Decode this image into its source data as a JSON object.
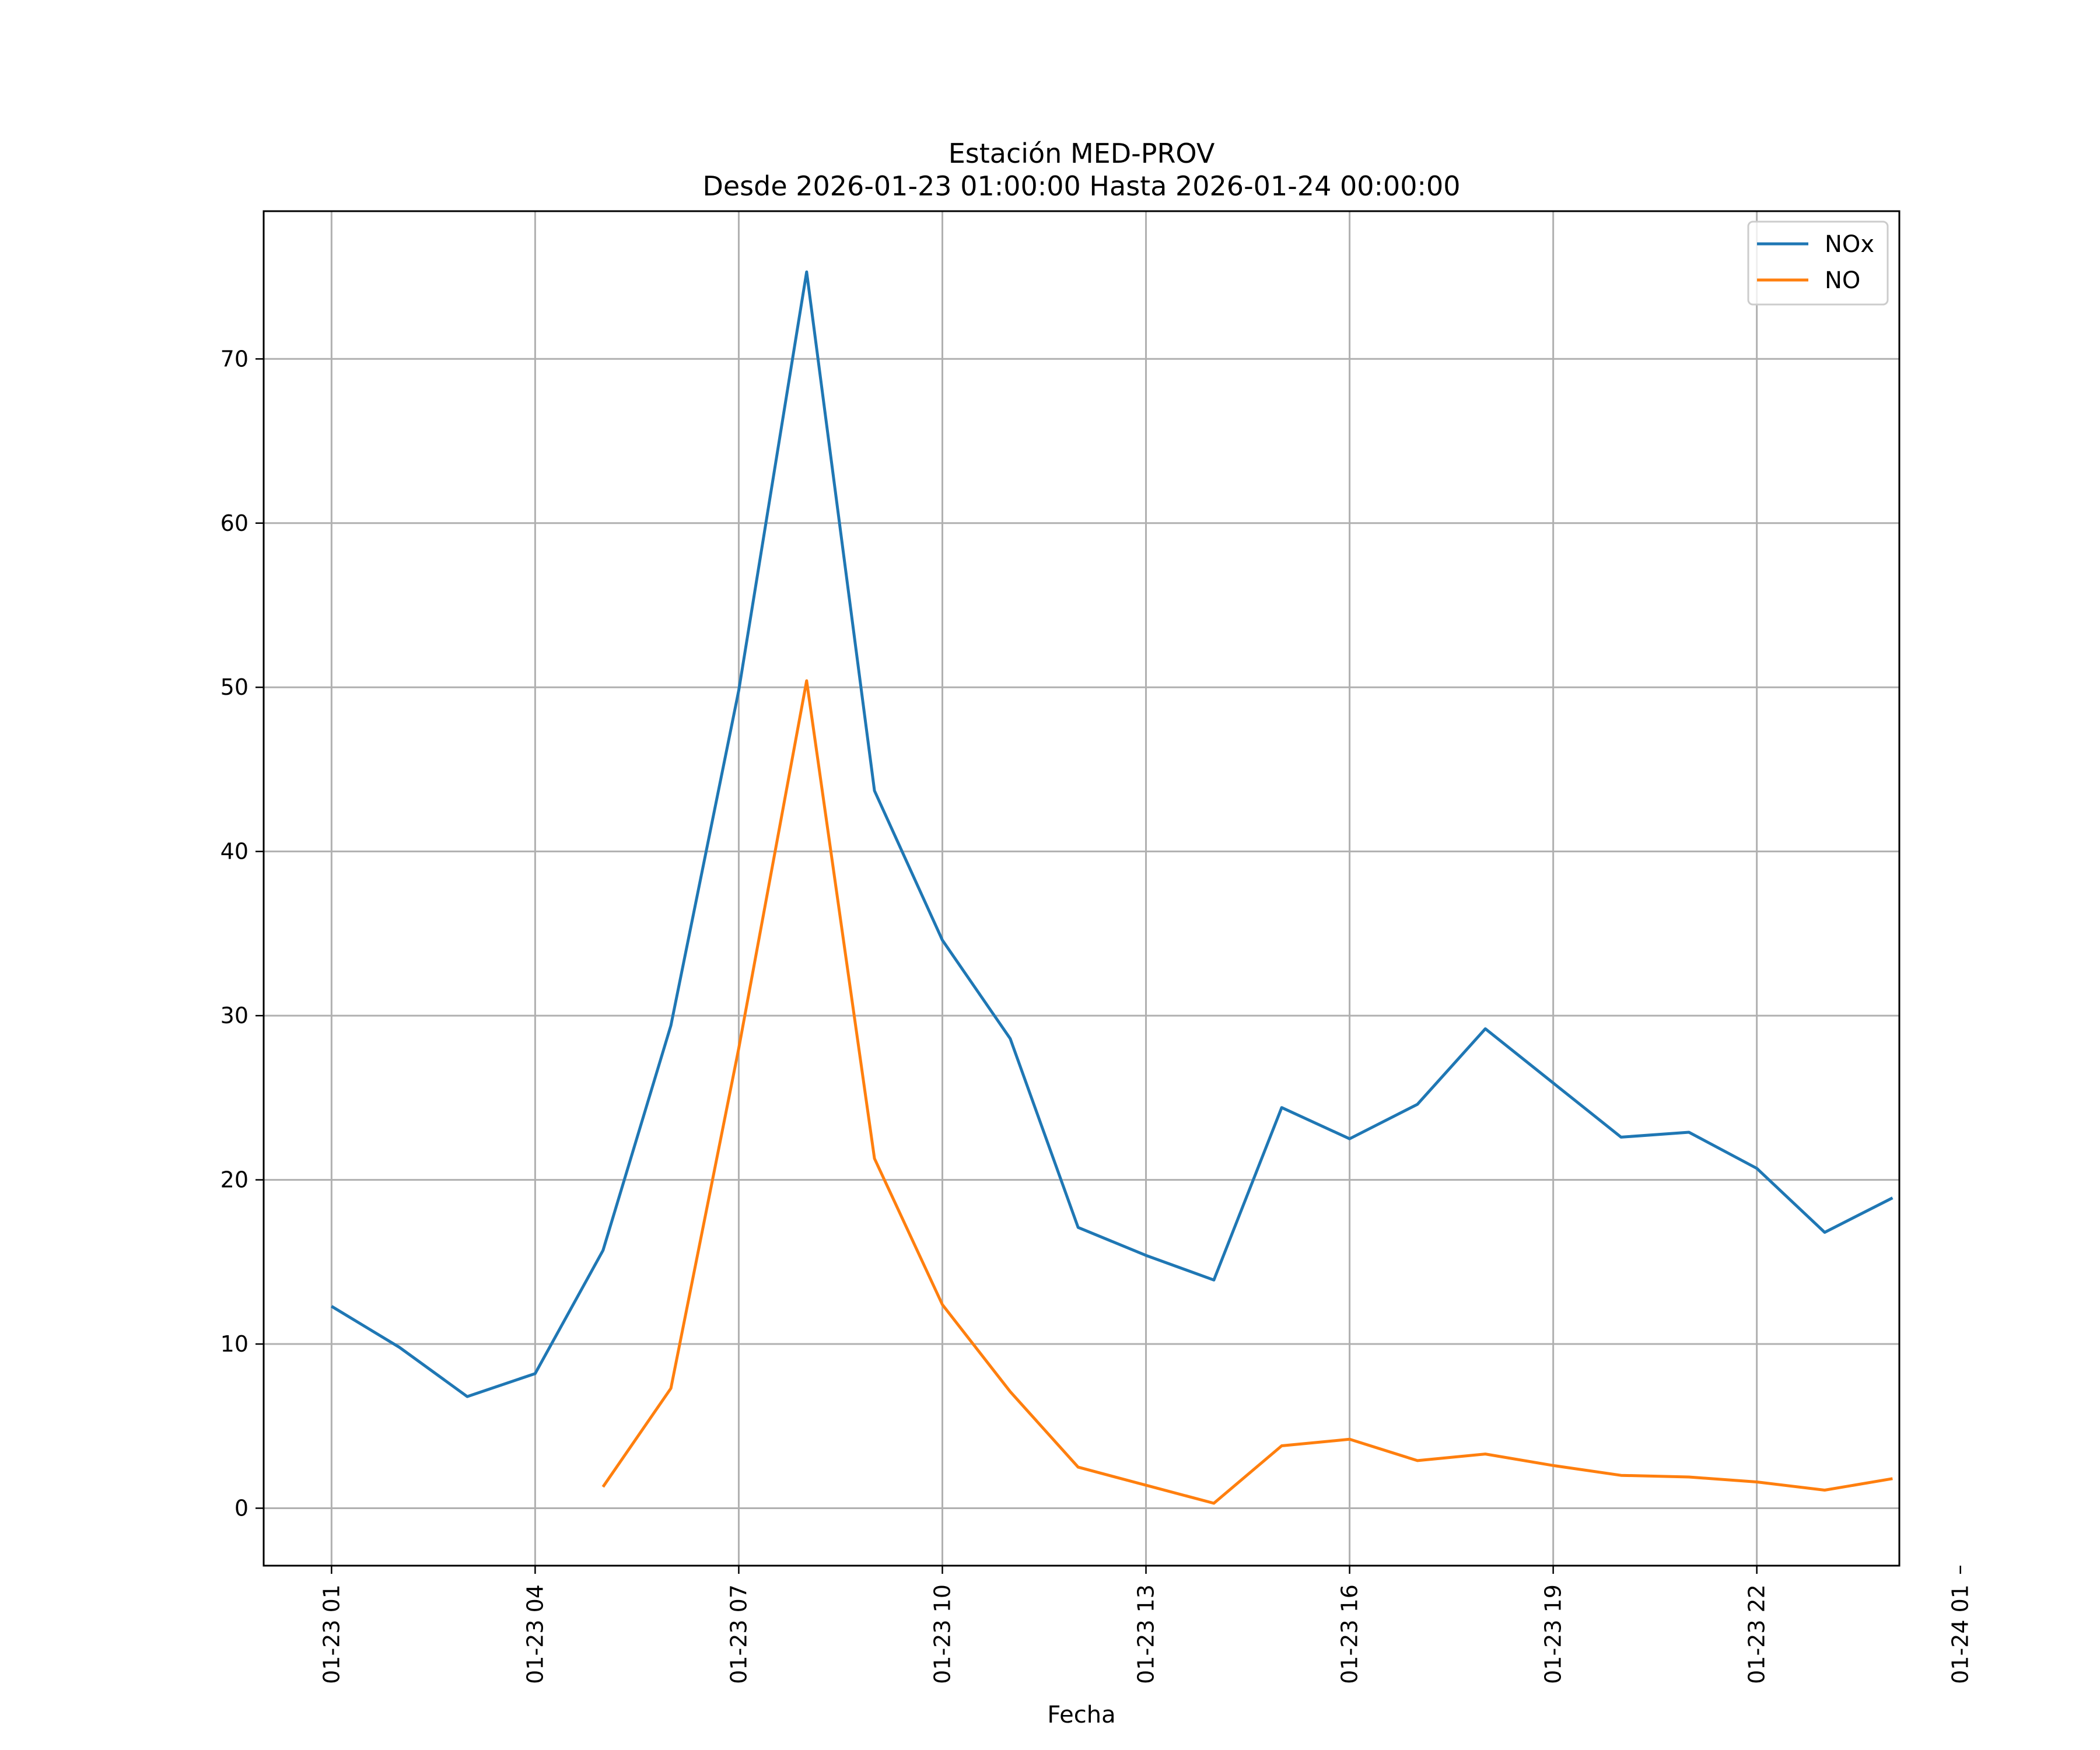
{
  "chart_data": {
    "type": "line",
    "title_line1": "Estación MED-PROV",
    "title_line2": "Desde 2026-01-23 01:00:00 Hasta 2026-01-24 00:00:00",
    "xlabel": "Fecha",
    "ylabel": "",
    "ylim": [
      -3.5,
      79
    ],
    "xlim_hours": [
      0.0,
      24.1
    ],
    "grid": true,
    "legend_position": "top-right",
    "x_ticks": [
      {
        "hour": 1,
        "label": "01-23 01"
      },
      {
        "hour": 4,
        "label": "01-23 04"
      },
      {
        "hour": 7,
        "label": "01-23 07"
      },
      {
        "hour": 10,
        "label": "01-23 10"
      },
      {
        "hour": 13,
        "label": "01-23 13"
      },
      {
        "hour": 16,
        "label": "01-23 16"
      },
      {
        "hour": 19,
        "label": "01-23 19"
      },
      {
        "hour": 22,
        "label": "01-23 22"
      },
      {
        "hour": 25,
        "label": "01-24 01"
      }
    ],
    "y_ticks": [
      0,
      10,
      20,
      30,
      40,
      50,
      60,
      70
    ],
    "series": [
      {
        "name": "NOx",
        "color": "#1f77b4",
        "points": [
          [
            1,
            12.3
          ],
          [
            2,
            9.8
          ],
          [
            3,
            6.8
          ],
          [
            4,
            8.2
          ],
          [
            5,
            15.7
          ],
          [
            6,
            29.4
          ],
          [
            7,
            49.8
          ],
          [
            8,
            75.3
          ],
          [
            9,
            43.7
          ],
          [
            10,
            34.6
          ],
          [
            11,
            28.6
          ],
          [
            12,
            17.1
          ],
          [
            13,
            15.4
          ],
          [
            14,
            13.9
          ],
          [
            15,
            24.4
          ],
          [
            16,
            22.5
          ],
          [
            17,
            24.6
          ],
          [
            18,
            29.2
          ],
          [
            19,
            25.9
          ],
          [
            20,
            22.6
          ],
          [
            21,
            22.9
          ],
          [
            22,
            20.7
          ],
          [
            23,
            16.8
          ],
          [
            24,
            18.9
          ]
        ]
      },
      {
        "name": "NO",
        "color": "#ff7f0e",
        "points": [
          [
            5,
            1.3
          ],
          [
            6,
            7.3
          ],
          [
            7,
            28.0
          ],
          [
            8,
            50.4
          ],
          [
            9,
            21.3
          ],
          [
            10,
            12.4
          ],
          [
            11,
            7.1
          ],
          [
            12,
            2.5
          ],
          [
            13,
            1.4
          ],
          [
            14,
            0.3
          ],
          [
            15,
            3.8
          ],
          [
            16,
            4.2
          ],
          [
            17,
            2.9
          ],
          [
            18,
            3.3
          ],
          [
            19,
            2.6
          ],
          [
            20,
            2.0
          ],
          [
            21,
            1.9
          ],
          [
            22,
            1.6
          ],
          [
            23,
            1.1
          ],
          [
            24,
            1.8
          ]
        ]
      }
    ]
  }
}
